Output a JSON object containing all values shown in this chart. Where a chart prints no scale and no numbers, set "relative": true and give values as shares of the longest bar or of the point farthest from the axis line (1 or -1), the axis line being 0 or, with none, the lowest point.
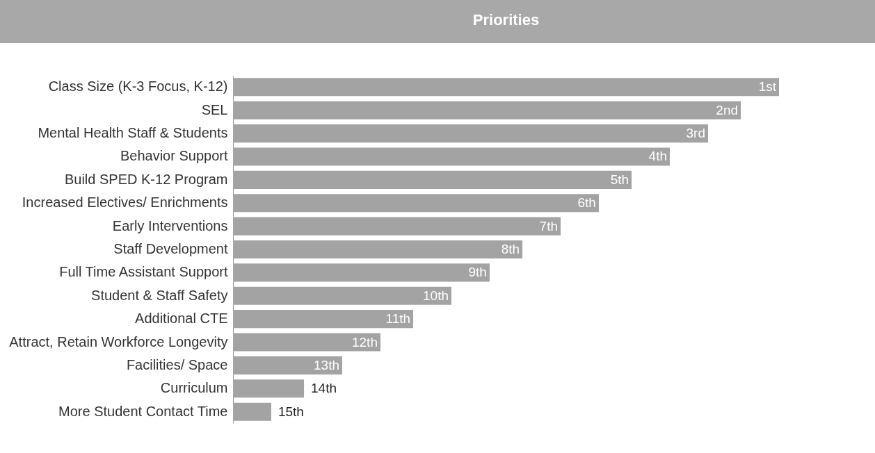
{
  "chart_data": {
    "type": "bar",
    "orientation": "horizontal",
    "relative": true,
    "title": "Priorities",
    "categories": [
      "Class Size (K-3 Focus, K-12)",
      "SEL",
      "Mental Health Staff & Students",
      "Behavior Support",
      "Build SPED K-12 Program",
      "Increased Electives/ Enrichments",
      "Early Interventions",
      "Staff Development",
      "Full Time Assistant Support",
      "Student & Staff Safety",
      "Additional CTE",
      "Attract, Retain Workforce Longevity",
      "Facilities/ Space",
      "Curriculum",
      "More Student Contact Time"
    ],
    "values": [
      1,
      0.93,
      0.87,
      0.8,
      0.73,
      0.67,
      0.6,
      0.53,
      0.47,
      0.4,
      0.33,
      0.27,
      0.2,
      0.13,
      0.07
    ],
    "annotations": [
      {
        "text": "1st",
        "y": "Class Size (K-3 Focus, K-12)",
        "x": 1
      },
      {
        "text": "2nd",
        "y": "SEL",
        "x": 0.93
      },
      {
        "text": "3rd",
        "y": "Mental Health Staff & Students",
        "x": 0.87
      },
      {
        "text": "4th",
        "y": "Behavior Support",
        "x": 0.8
      },
      {
        "text": "5th",
        "y": "Build SPED K-12 Program",
        "x": 0.73
      },
      {
        "text": "6th",
        "y": "Increased Electives/ Enrichments",
        "x": 0.67
      },
      {
        "text": "7th",
        "y": "Early Interventions",
        "x": 0.6
      },
      {
        "text": "8th",
        "y": "Staff Development",
        "x": 0.53
      },
      {
        "text": "9th",
        "y": "Full Time Assistant Support",
        "x": 0.47
      },
      {
        "text": "10th",
        "y": "Student & Staff Safety",
        "x": 0.4
      },
      {
        "text": "11th",
        "y": "Additional CTE",
        "x": 0.33
      },
      {
        "text": "12th",
        "y": "Attract, Retain Workforce Longevity",
        "x": 0.27
      },
      {
        "text": "13th",
        "y": "Facilities/ Space",
        "x": 0.2
      },
      {
        "text": "14th",
        "y": "Curriculum",
        "x": 0.13
      },
      {
        "text": "15th",
        "y": "More Student Contact Time",
        "x": 0.07
      }
    ],
    "color": "#a3a3a3"
  }
}
